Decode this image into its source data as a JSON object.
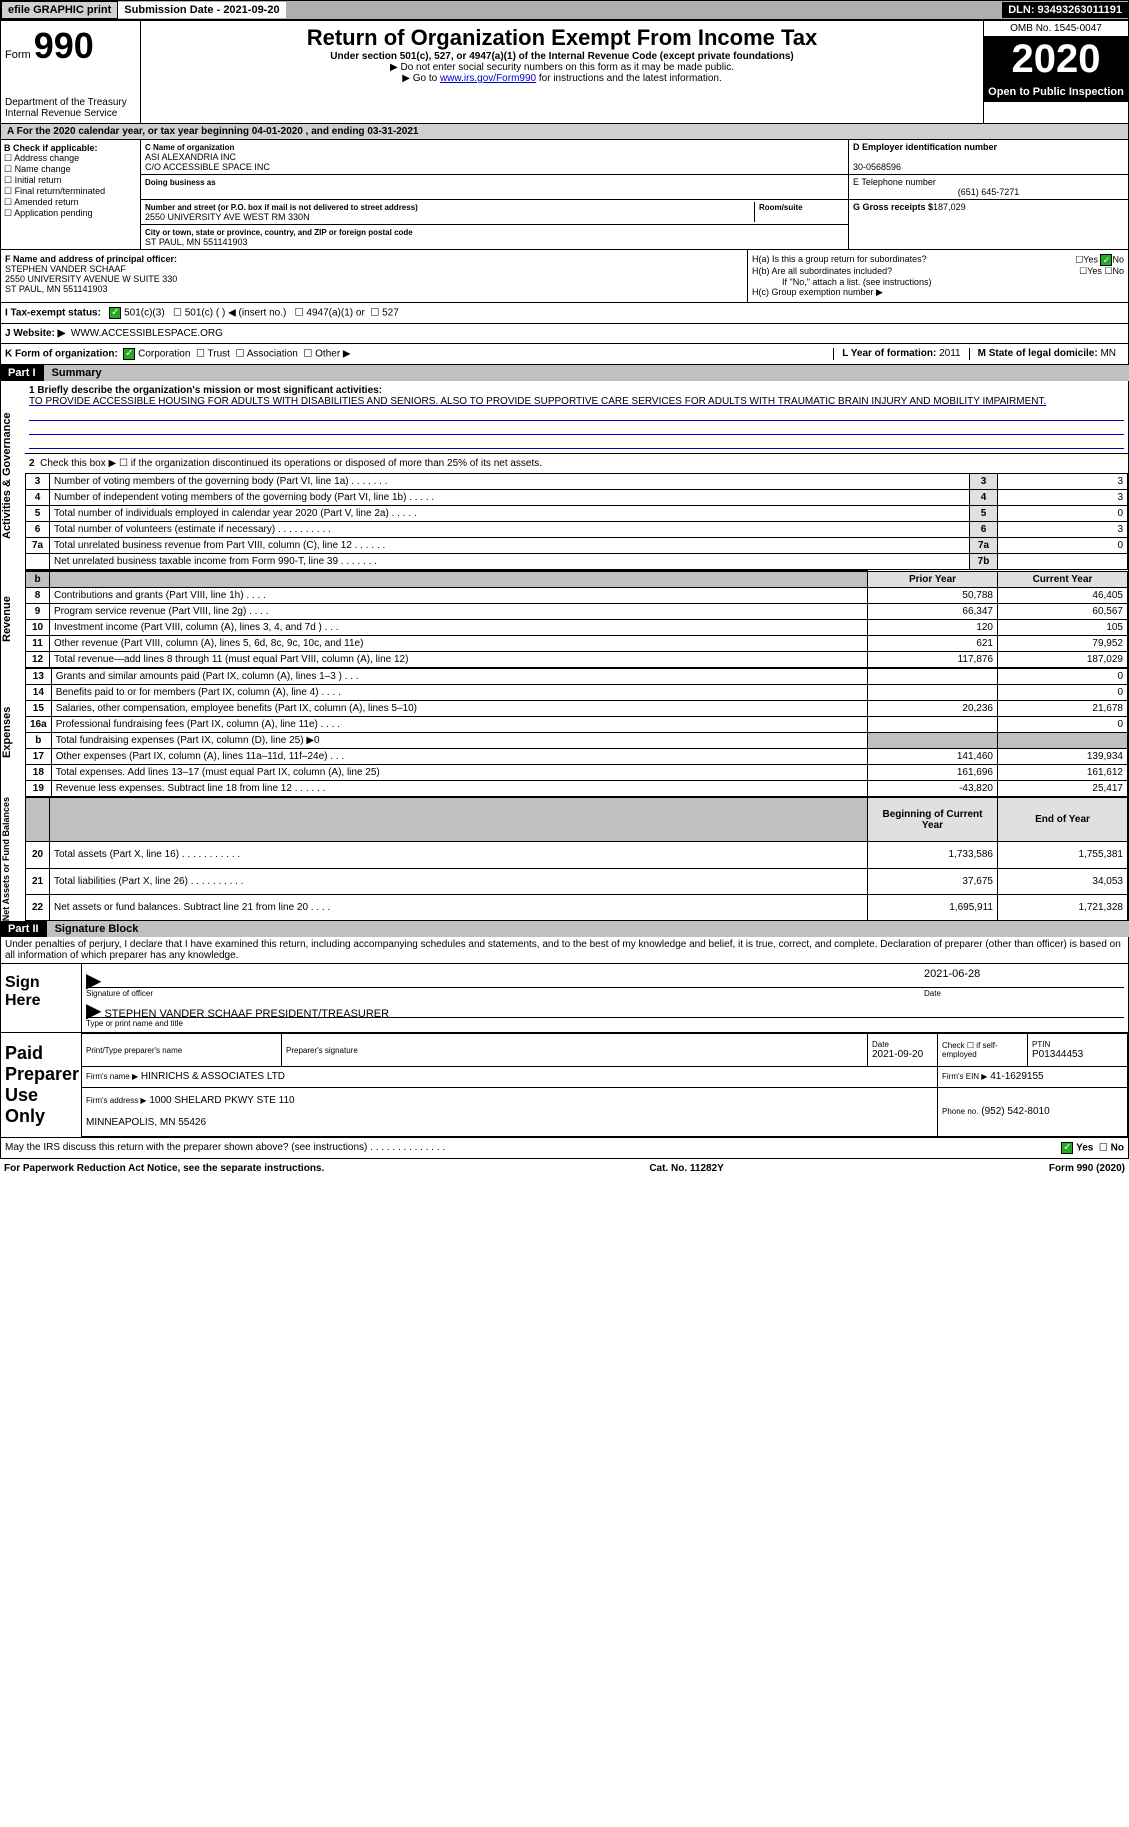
{
  "topbar": {
    "efile": "efile GRAPHIC print",
    "sub_label": "Submission Date - 2021-09-20",
    "dln": "DLN: 93493263011191"
  },
  "header": {
    "form_label": "Form",
    "form_no": "990",
    "dept": "Department of the Treasury\nInternal Revenue Service",
    "title": "Return of Organization Exempt From Income Tax",
    "subtitle": "Under section 501(c), 527, or 4947(a)(1) of the Internal Revenue Code (except private foundations)",
    "note1": "▶ Do not enter social security numbers on this form as it may be made public.",
    "note2_pre": "▶ Go to ",
    "note2_link": "www.irs.gov/Form990",
    "note2_post": " for instructions and the latest information.",
    "omb": "OMB No. 1545-0047",
    "year": "2020",
    "open": "Open to Public Inspection"
  },
  "row_a": "A For the 2020 calendar year, or tax year beginning 04-01-2020    , and ending 03-31-2021",
  "col_b": {
    "header": "B Check if applicable:",
    "items": [
      "Address change",
      "Name change",
      "Initial return",
      "Final return/terminated",
      "Amended return",
      "Application pending"
    ]
  },
  "col_c": {
    "name_label": "C Name of organization",
    "name": "ASI ALEXANDRIA INC\nC/O ACCESSIBLE SPACE INC",
    "dba_label": "Doing business as",
    "dba": "",
    "addr_label": "Number and street (or P.O. box if mail is not delivered to street address)",
    "room_label": "Room/suite",
    "addr": "2550 UNIVERSITY AVE WEST RM 330N",
    "city_label": "City or town, state or province, country, and ZIP or foreign postal code",
    "city": "ST PAUL, MN  551141903"
  },
  "col_d": {
    "ein_label": "D Employer identification number",
    "ein": "30-0568596",
    "phone_label": "E Telephone number",
    "phone": "(651) 645-7271",
    "gross_label": "G Gross receipts $",
    "gross": "187,029"
  },
  "col_f": {
    "label": "F Name and address of principal officer:",
    "name": "STEPHEN VANDER SCHAAF",
    "addr": "2550 UNIVERSITY AVENUE W SUITE 330\nST PAUL, MN  551141903"
  },
  "col_h": {
    "ha_label": "H(a)  Is this a group return for subordinates?",
    "hb_label": "H(b)  Are all subordinates included?",
    "hb_note": "If \"No,\" attach a list. (see instructions)",
    "hc_label": "H(c)  Group exemption number ▶",
    "yes": "Yes",
    "no": "No"
  },
  "row_i": {
    "label": "I    Tax-exempt status:",
    "opts": [
      "501(c)(3)",
      "501(c) (  ) ◀ (insert no.)",
      "4947(a)(1) or",
      "527"
    ]
  },
  "row_j": {
    "label": "J   Website: ▶",
    "value": "WWW.ACCESSIBLESPACE.ORG"
  },
  "row_k": {
    "label": "K Form of organization:",
    "opts": [
      "Corporation",
      "Trust",
      "Association",
      "Other ▶"
    ],
    "l_label": "L Year of formation:",
    "l_val": "2011",
    "m_label": "M State of legal domicile:",
    "m_val": "MN"
  },
  "part1": {
    "header": "Part I",
    "title": "Summary",
    "mission_label": "1  Briefly describe the organization's mission or most significant activities:",
    "mission": "TO PROVIDE ACCESSIBLE HOUSING FOR ADULTS WITH DISABILITIES AND SENIORS. ALSO TO PROVIDE SUPPORTIVE CARE SERVICES FOR ADULTS WITH TRAUMATIC BRAIN INJURY AND MOBILITY IMPAIRMENT.",
    "line2": "Check this box ▶ ☐  if the organization discontinued its operations or disposed of more than 25% of its net assets.",
    "governance_label": "Activities & Governance",
    "gov_lines": [
      {
        "n": "3",
        "d": "Number of voting members of the governing body (Part VI, line 1a)   .    .    .    .    .    .    .",
        "box": "3",
        "v": "3"
      },
      {
        "n": "4",
        "d": "Number of independent voting members of the governing body (Part VI, line 1b)  .    .    .    .    .",
        "box": "4",
        "v": "3"
      },
      {
        "n": "5",
        "d": "Total number of individuals employed in calendar year 2020 (Part V, line 2a)  .    .    .    .    .",
        "box": "5",
        "v": "0"
      },
      {
        "n": "6",
        "d": "Total number of volunteers (estimate if necessary)   .    .    .    .    .    .    .    .    .    .",
        "box": "6",
        "v": "3"
      },
      {
        "n": "7a",
        "d": "Total unrelated business revenue from Part VIII, column (C), line 12   .    .    .    .    .    .",
        "box": "7a",
        "v": "0"
      },
      {
        "n": "",
        "d": "Net unrelated business taxable income from Form 990-T, line 39   .    .    .    .    .    .    .",
        "box": "7b",
        "v": ""
      }
    ],
    "col_headers": {
      "prior": "Prior Year",
      "current": "Current Year",
      "boy": "Beginning of Current Year",
      "eoy": "End of Year"
    },
    "revenue_label": "Revenue",
    "revenue_lines": [
      {
        "n": "8",
        "d": "Contributions and grants (Part VIII, line 1h)   .    .    .    .",
        "p": "50,788",
        "c": "46,405"
      },
      {
        "n": "9",
        "d": "Program service revenue (Part VIII, line 2g)   .    .    .    .",
        "p": "66,347",
        "c": "60,567"
      },
      {
        "n": "10",
        "d": "Investment income (Part VIII, column (A), lines 3, 4, and 7d )   .    .    .",
        "p": "120",
        "c": "105"
      },
      {
        "n": "11",
        "d": "Other revenue (Part VIII, column (A), lines 5, 6d, 8c, 9c, 10c, and 11e)",
        "p": "621",
        "c": "79,952"
      },
      {
        "n": "12",
        "d": "Total revenue—add lines 8 through 11 (must equal Part VIII, column (A), line 12)",
        "p": "117,876",
        "c": "187,029"
      }
    ],
    "expenses_label": "Expenses",
    "expense_lines": [
      {
        "n": "13",
        "d": "Grants and similar amounts paid (Part IX, column (A), lines 1–3 )   .    .    .",
        "p": "",
        "c": "0"
      },
      {
        "n": "14",
        "d": "Benefits paid to or for members (Part IX, column (A), line 4)   .    .    .    .",
        "p": "",
        "c": "0"
      },
      {
        "n": "15",
        "d": "Salaries, other compensation, employee benefits (Part IX, column (A), lines 5–10)",
        "p": "20,236",
        "c": "21,678"
      },
      {
        "n": "16a",
        "d": "Professional fundraising fees (Part IX, column (A), line 11e)   .    .    .    .",
        "p": "",
        "c": "0"
      },
      {
        "n": "b",
        "d": "Total fundraising expenses (Part IX, column (D), line 25) ▶0",
        "p": "shade",
        "c": "shade"
      },
      {
        "n": "17",
        "d": "Other expenses (Part IX, column (A), lines 11a–11d, 11f–24e)   .    .    .",
        "p": "141,460",
        "c": "139,934"
      },
      {
        "n": "18",
        "d": "Total expenses. Add lines 13–17 (must equal Part IX, column (A), line 25)",
        "p": "161,696",
        "c": "161,612"
      },
      {
        "n": "19",
        "d": "Revenue less expenses. Subtract line 18 from line 12   .    .    .    .    .    .",
        "p": "-43,820",
        "c": "25,417"
      }
    ],
    "net_label": "Net Assets or Fund Balances",
    "net_lines": [
      {
        "n": "20",
        "d": "Total assets (Part X, line 16)   .    .    .    .    .    .    .    .    .    .    .",
        "p": "1,733,586",
        "c": "1,755,381"
      },
      {
        "n": "21",
        "d": "Total liabilities (Part X, line 26)   .    .    .    .    .    .    .    .    .    .",
        "p": "37,675",
        "c": "34,053"
      },
      {
        "n": "22",
        "d": "Net assets or fund balances. Subtract line 21 from line 20   .    .    .    .",
        "p": "1,695,911",
        "c": "1,721,328"
      }
    ]
  },
  "part2": {
    "header": "Part II",
    "title": "Signature Block",
    "declaration": "Under penalties of perjury, I declare that I have examined this return, including accompanying schedules and statements, and to the best of my knowledge and belief, it is true, correct, and complete. Declaration of preparer (other than officer) is based on all information of which preparer has any knowledge.",
    "sign_here": "Sign Here",
    "sig_officer_label": "Signature of officer",
    "sig_date": "2021-06-28",
    "date_label": "Date",
    "officer_name": "STEPHEN VANDER SCHAAF  PRESIDENT/TREASURER",
    "officer_name_label": "Type or print name and title",
    "paid_label": "Paid Preparer Use Only",
    "prep_name_label": "Print/Type preparer's name",
    "prep_sig_label": "Preparer's signature",
    "prep_date_label": "Date",
    "prep_date": "2021-09-20",
    "self_emp_label": "Check ☐ if self-employed",
    "ptin_label": "PTIN",
    "ptin": "P01344453",
    "firm_name_label": "Firm's name     ▶",
    "firm_name": "HINRICHS & ASSOCIATES LTD",
    "firm_ein_label": "Firm's EIN ▶",
    "firm_ein": "41-1629155",
    "firm_addr_label": "Firm's address ▶",
    "firm_addr": "1000 SHELARD PKWY STE 110\n\nMINNEAPOLIS, MN  55426",
    "firm_phone_label": "Phone no.",
    "firm_phone": "(952) 542-8010",
    "may_irs": "May the IRS discuss this return with the preparer shown above? (see instructions)   .    .    .    .    .    .    .    .    .    .    .    .    .    ."
  },
  "footer": {
    "left": "For Paperwork Reduction Act Notice, see the separate instructions.",
    "center": "Cat. No. 11282Y",
    "right": "Form 990 (2020)"
  }
}
